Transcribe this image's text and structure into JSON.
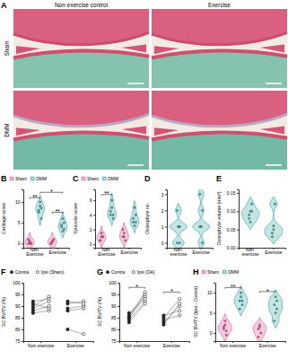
{
  "figure": {
    "panel": "A",
    "columns": [
      "Non exercise control",
      "Exercise"
    ],
    "rows": [
      "Sham",
      "DMM"
    ]
  },
  "chart_data": [
    {
      "type": "violin",
      "title": "B",
      "ylabel": "Cartilage score",
      "categories": [
        "Non Exercise",
        "Exercise"
      ],
      "series": [
        {
          "name": "Sham",
          "color": "#e0569a",
          "values": [
            [
              0,
              0.5,
              0,
              1,
              0.5,
              0
            ],
            [
              0,
              0.5,
              1,
              0,
              0.5
            ]
          ]
        },
        {
          "name": "DMM",
          "color": "#3fa9a8",
          "values": [
            [
              8,
              9,
              6,
              7.5,
              10,
              8.5
            ],
            [
              4,
              3,
              5,
              4.5,
              6,
              3.5
            ]
          ]
        }
      ],
      "ylim": [
        -1,
        13
      ],
      "yticks": [
        0,
        5,
        10
      ],
      "legend": "top",
      "annotations": [
        {
          "text": "**",
          "between": [
            [
              0,
              0
            ],
            [
              0,
              1
            ]
          ],
          "y": 11
        },
        {
          "text": "*",
          "between": [
            [
              0,
              1
            ],
            [
              1,
              1
            ]
          ],
          "y": 12.3
        },
        {
          "text": "**",
          "between": [
            [
              1,
              0
            ],
            [
              1,
              1
            ]
          ],
          "y": 7.5
        }
      ]
    },
    {
      "type": "violin",
      "title": "C",
      "ylabel": "Synovitis score",
      "categories": [
        "Non Exercise",
        "Exercise"
      ],
      "series": [
        {
          "name": "Sham",
          "color": "#e0569a",
          "values": [
            [
              0.5,
              1,
              1,
              0.5,
              1.5,
              1
            ],
            [
              1,
              1.5,
              0.5,
              2,
              1
            ]
          ]
        },
        {
          "name": "DMM",
          "color": "#3fa9a8",
          "values": [
            [
              4,
              5,
              3.5,
              4.5,
              6,
              4
            ],
            [
              3,
              2.5,
              4,
              3.5,
              5,
              3
            ]
          ]
        }
      ],
      "ylim": [
        -0.5,
        7.5
      ],
      "yticks": [
        0,
        2,
        4,
        6
      ],
      "legend": "top",
      "annotations": [
        {
          "text": "**",
          "between": [
            [
              0,
              0
            ],
            [
              0,
              1
            ]
          ],
          "y": 6.8
        }
      ]
    },
    {
      "type": "violin",
      "title": "D",
      "ylabel": "Osteophyte no.",
      "categories": [
        "Non exercise",
        "Exercise"
      ],
      "series": [
        {
          "color": "#3fa9a8",
          "values": [
            [
              0,
              1,
              1,
              2,
              1,
              0
            ],
            [
              1,
              1,
              2,
              3,
              1,
              0
            ]
          ]
        }
      ],
      "ylim": [
        -0.3,
        3.3
      ],
      "yticks": [
        0,
        1,
        2,
        3
      ]
    },
    {
      "type": "violin",
      "title": "E",
      "ylabel": "Osteophyte volume (mm³)",
      "categories": [
        "Non exercise",
        "Exercise"
      ],
      "series": [
        {
          "color": "#3fa9a8",
          "values": [
            [
              0.08,
              0.1,
              0.12,
              0.09,
              0.07,
              0.1
            ],
            [
              0.03,
              0.05,
              0.12,
              0.04,
              0.06
            ]
          ]
        }
      ],
      "ylim": [
        0,
        0.16
      ],
      "yticks": [
        {
          "value": 0,
          "label": "0.00"
        },
        {
          "value": 0.05,
          "label": "0.05"
        },
        {
          "value": 0.1,
          "label": "0.10"
        },
        {
          "value": 0.15,
          "label": "0.15"
        }
      ]
    },
    {
      "type": "paired",
      "title": "F",
      "ylabel": "SC BV/TV (%)",
      "categories": [
        "Non exercise",
        "Exercise"
      ],
      "series": [
        {
          "name": "Contra",
          "color": "#222222",
          "marker": "circle",
          "values": [
            [
              87,
              90,
              92,
              91,
              88,
              89
            ],
            [
              89,
              91,
              92,
              80,
              88
            ]
          ]
        },
        {
          "name": "Ipsi (Sham)",
          "color": "#222222",
          "marker": "open_circle",
          "values": [
            [
              88,
              94,
              93,
              89,
              90,
              92
            ],
            [
              90,
              92,
              91,
              78,
              89
            ]
          ]
        }
      ],
      "ylim": [
        75,
        100
      ],
      "yticks": [
        75,
        80,
        85,
        90,
        95,
        100
      ],
      "legend": "top"
    },
    {
      "type": "paired",
      "title": "G",
      "ylabel": "SC BV/TV (%)",
      "categories": [
        "Non exercise",
        "Exercise"
      ],
      "series": [
        {
          "name": "Contra",
          "color": "#222222",
          "marker": "circle",
          "values": [
            [
              84,
              85,
              86,
              87,
              83,
              85
            ],
            [
              83,
              86,
              85,
              84,
              82
            ]
          ]
        },
        {
          "name": "Ipsi (OA)",
          "color": "#222222",
          "marker": "open_circle",
          "values": [
            [
              92,
              94,
              95,
              93,
              91,
              96
            ],
            [
              90,
              88,
              93,
              86,
              91
            ]
          ]
        }
      ],
      "ylim": [
        75,
        100
      ],
      "yticks": [
        75,
        80,
        85,
        90,
        95,
        100
      ],
      "legend": "top",
      "annotations": [
        {
          "text": "*",
          "between": [
            [
              0,
              0
            ],
            [
              0,
              1
            ]
          ],
          "y": 98
        },
        {
          "text": "*",
          "between": [
            [
              1,
              0
            ],
            [
              1,
              1
            ]
          ],
          "y": 96
        }
      ]
    },
    {
      "type": "violin",
      "title": "H",
      "ylabel": "SC BV/TV (Ipsi - Contra)",
      "categories": [
        "Non exercise",
        "Exercise"
      ],
      "series": [
        {
          "name": "Sham",
          "color": "#e0569a",
          "values": [
            [
              1,
              2,
              0.5,
              1.5,
              3,
              -0.5
            ],
            [
              1,
              2,
              0,
              -1,
              1.5
            ]
          ]
        },
        {
          "name": "DMM",
          "color": "#3fa9a8",
          "values": [
            [
              8,
              9,
              7,
              6,
              10,
              8
            ],
            [
              7,
              5,
              8,
              3,
              9,
              6
            ]
          ]
        }
      ],
      "ylim": [
        -2,
        12.5
      ],
      "yticks": [
        0,
        5,
        10
      ],
      "legend": "top",
      "annotations": [
        {
          "text": "**",
          "between": [
            [
              0,
              0
            ],
            [
              0,
              1
            ]
          ],
          "y": 11.3
        },
        {
          "text": "*",
          "between": [
            [
              1,
              0
            ],
            [
              1,
              1
            ]
          ],
          "y": 10.3
        }
      ]
    }
  ]
}
